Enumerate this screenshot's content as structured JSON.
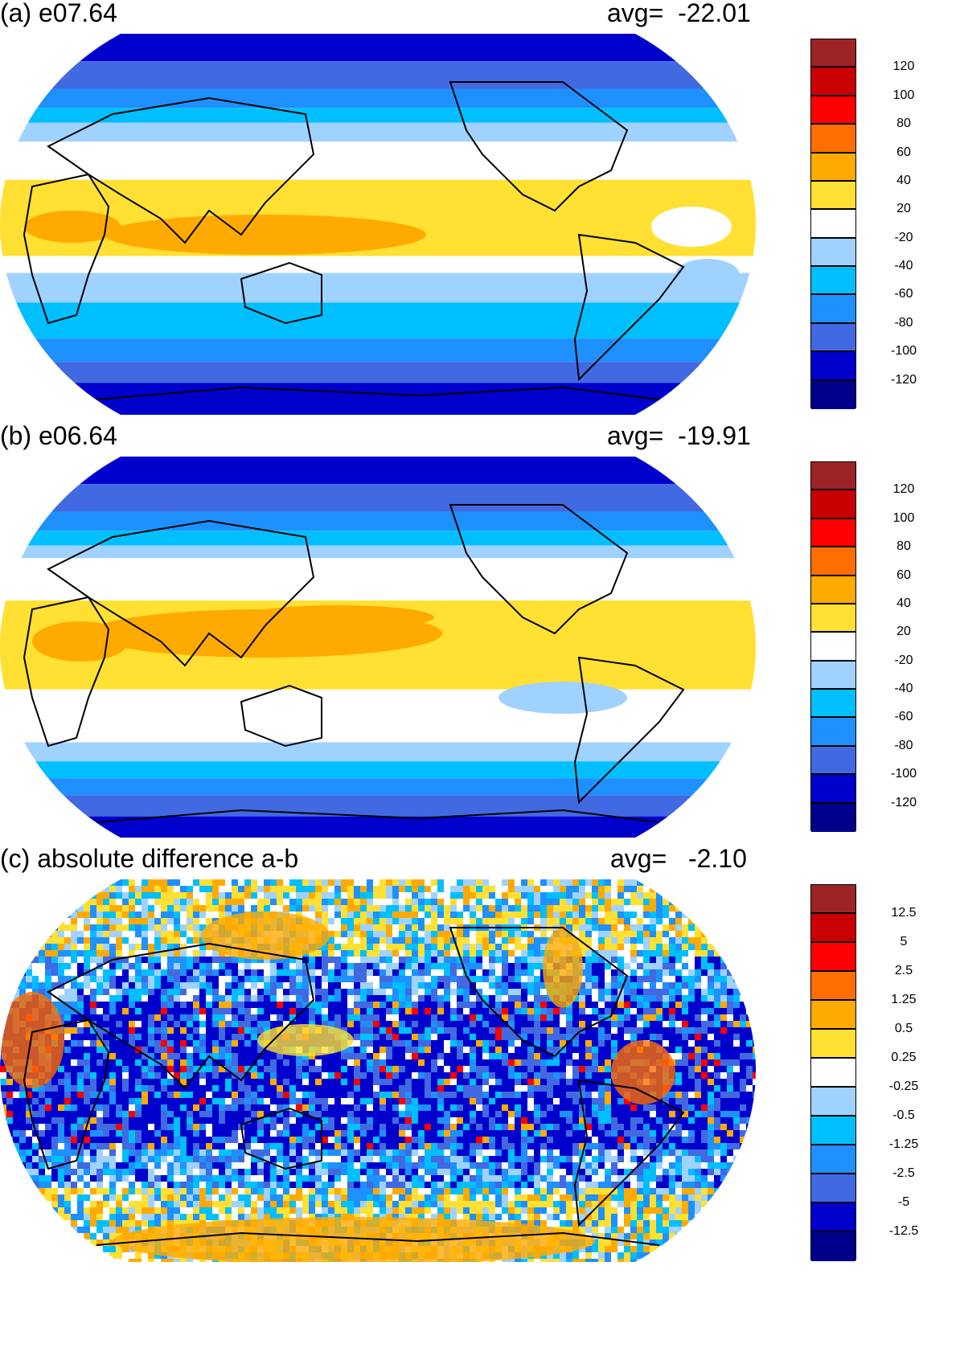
{
  "colors": [
    "#9c2426",
    "#c80000",
    "#ff0000",
    "#ff6e00",
    "#ffaa00",
    "#ffe033",
    "#ffffff",
    "#a0d2ff",
    "#00bfff",
    "#1e90ff",
    "#4169e1",
    "#0000cd",
    "#00008b"
  ],
  "panels": [
    {
      "title": "(a) e07.64",
      "avg_label": "avg=",
      "avg_value": "-22.01",
      "colorbar_labels": [
        "120",
        "100",
        "80",
        "60",
        "40",
        "20",
        "-20",
        "-40",
        "-60",
        "-80",
        "-100",
        "-120"
      ]
    },
    {
      "title": "(b) e06.64",
      "avg_label": "avg=",
      "avg_value": "-19.91",
      "colorbar_labels": [
        "120",
        "100",
        "80",
        "60",
        "40",
        "20",
        "-20",
        "-40",
        "-60",
        "-80",
        "-100",
        "-120"
      ]
    },
    {
      "title": "(c) absolute difference a-b",
      "avg_label": "avg=",
      "avg_value": "-2.10",
      "colorbar_labels": [
        "12.5",
        "5",
        "2.5",
        "1.25",
        "0.5",
        "0.25",
        "-0.25",
        "-0.5",
        "-1.25",
        "-2.5",
        "-5",
        "-12.5"
      ]
    }
  ]
}
